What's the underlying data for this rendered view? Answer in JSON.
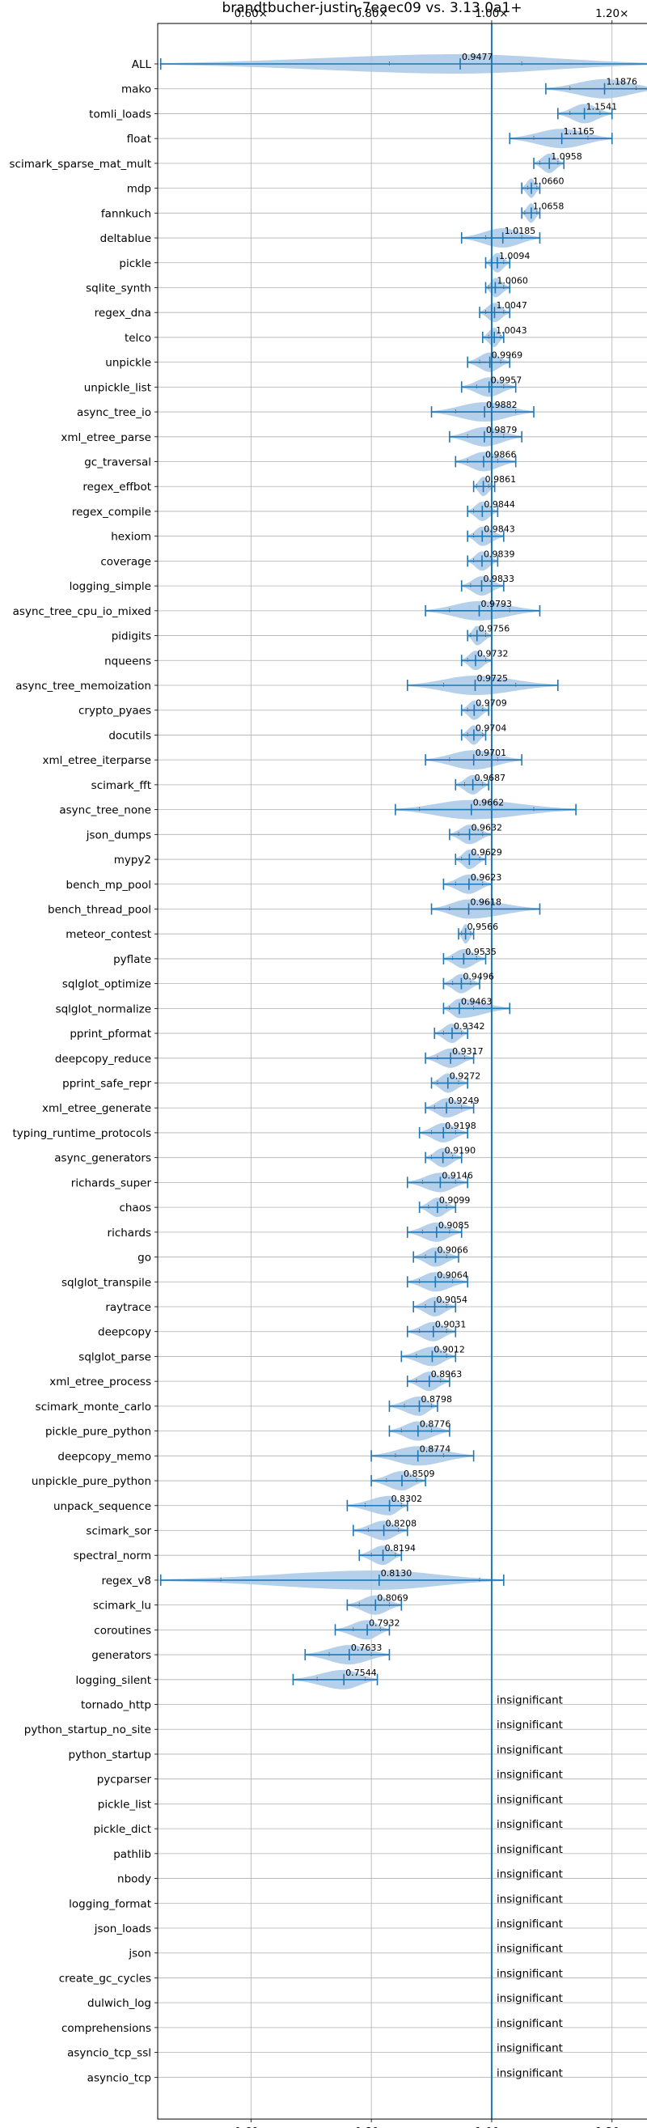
{
  "chart_data": {
    "type": "violin",
    "title": "brandtbucher-justin-7eaec09 vs. 3.13.0a1+",
    "xlim": [
      0.445,
      1.285
    ],
    "x_ticks": [
      0.6,
      0.8,
      1.0,
      1.2
    ],
    "x_tick_labels": [
      "0.60×",
      "0.80×",
      "1.00×",
      "1.20×"
    ],
    "reference_line": 1.0,
    "grid": true,
    "violin_color": "#a8c8e6",
    "line_color": "#1f77b4",
    "insignificant_text": "insignificant",
    "benchmarks": [
      {
        "name": "ALL",
        "mean": 0.9477,
        "min": 0.45,
        "max": 1.28,
        "p_lo": 0.83,
        "p_hi": 1.05
      },
      {
        "name": "mako",
        "mean": 1.1876,
        "min": 1.09,
        "max": 1.28,
        "p_lo": 1.13,
        "p_hi": 1.24
      },
      {
        "name": "tomli_loads",
        "mean": 1.1541,
        "min": 1.11,
        "max": 1.2,
        "p_lo": 1.13,
        "p_hi": 1.18
      },
      {
        "name": "float",
        "mean": 1.1165,
        "min": 1.03,
        "max": 1.2,
        "p_lo": 1.07,
        "p_hi": 1.16
      },
      {
        "name": "scimark_sparse_mat_mult",
        "mean": 1.0958,
        "min": 1.07,
        "max": 1.12,
        "p_lo": 1.08,
        "p_hi": 1.11
      },
      {
        "name": "mdp",
        "mean": 1.066,
        "min": 1.05,
        "max": 1.08,
        "p_lo": 1.06,
        "p_hi": 1.075
      },
      {
        "name": "fannkuch",
        "mean": 1.0658,
        "min": 1.05,
        "max": 1.08,
        "p_lo": 1.055,
        "p_hi": 1.075
      },
      {
        "name": "deltablue",
        "mean": 1.0185,
        "min": 0.95,
        "max": 1.08,
        "p_lo": 0.99,
        "p_hi": 1.05
      },
      {
        "name": "pickle",
        "mean": 1.0094,
        "min": 0.99,
        "max": 1.03,
        "p_lo": 1.0,
        "p_hi": 1.02
      },
      {
        "name": "sqlite_synth",
        "mean": 1.006,
        "min": 0.99,
        "max": 1.03,
        "p_lo": 0.995,
        "p_hi": 1.02
      },
      {
        "name": "regex_dna",
        "mean": 1.0047,
        "min": 0.98,
        "max": 1.03,
        "p_lo": 0.99,
        "p_hi": 1.02
      },
      {
        "name": "telco",
        "mean": 1.0043,
        "min": 0.985,
        "max": 1.02,
        "p_lo": 0.995,
        "p_hi": 1.015
      },
      {
        "name": "unpickle",
        "mean": 0.9969,
        "min": 0.96,
        "max": 1.03,
        "p_lo": 0.98,
        "p_hi": 1.015
      },
      {
        "name": "unpickle_list",
        "mean": 0.9957,
        "min": 0.95,
        "max": 1.04,
        "p_lo": 0.975,
        "p_hi": 1.02
      },
      {
        "name": "async_tree_io",
        "mean": 0.9882,
        "min": 0.9,
        "max": 1.07,
        "p_lo": 0.94,
        "p_hi": 1.04
      },
      {
        "name": "xml_etree_parse",
        "mean": 0.9879,
        "min": 0.93,
        "max": 1.05,
        "p_lo": 0.96,
        "p_hi": 1.02
      },
      {
        "name": "gc_traversal",
        "mean": 0.9866,
        "min": 0.94,
        "max": 1.04,
        "p_lo": 0.96,
        "p_hi": 1.01
      },
      {
        "name": "regex_effbot",
        "mean": 0.9861,
        "min": 0.97,
        "max": 1.005,
        "p_lo": 0.975,
        "p_hi": 0.995
      },
      {
        "name": "regex_compile",
        "mean": 0.9844,
        "min": 0.96,
        "max": 1.01,
        "p_lo": 0.97,
        "p_hi": 1.0
      },
      {
        "name": "hexiom",
        "mean": 0.9843,
        "min": 0.96,
        "max": 1.02,
        "p_lo": 0.97,
        "p_hi": 1.0
      },
      {
        "name": "coverage",
        "mean": 0.9839,
        "min": 0.96,
        "max": 1.01,
        "p_lo": 0.97,
        "p_hi": 1.0
      },
      {
        "name": "logging_simple",
        "mean": 0.9833,
        "min": 0.95,
        "max": 1.02,
        "p_lo": 0.965,
        "p_hi": 1.0
      },
      {
        "name": "async_tree_cpu_io_mixed",
        "mean": 0.9793,
        "min": 0.89,
        "max": 1.08,
        "p_lo": 0.93,
        "p_hi": 1.03
      },
      {
        "name": "pidigits",
        "mean": 0.9756,
        "min": 0.96,
        "max": 1.0,
        "p_lo": 0.965,
        "p_hi": 0.99
      },
      {
        "name": "nqueens",
        "mean": 0.9732,
        "min": 0.95,
        "max": 1.0,
        "p_lo": 0.96,
        "p_hi": 0.99
      },
      {
        "name": "async_tree_memoization",
        "mean": 0.9725,
        "min": 0.86,
        "max": 1.11,
        "p_lo": 0.92,
        "p_hi": 1.04
      },
      {
        "name": "crypto_pyaes",
        "mean": 0.9709,
        "min": 0.95,
        "max": 0.995,
        "p_lo": 0.96,
        "p_hi": 0.985
      },
      {
        "name": "docutils",
        "mean": 0.9704,
        "min": 0.95,
        "max": 0.99,
        "p_lo": 0.96,
        "p_hi": 0.985
      },
      {
        "name": "xml_etree_iterparse",
        "mean": 0.9701,
        "min": 0.89,
        "max": 1.05,
        "p_lo": 0.93,
        "p_hi": 1.01
      },
      {
        "name": "scimark_fft",
        "mean": 0.9687,
        "min": 0.94,
        "max": 0.995,
        "p_lo": 0.955,
        "p_hi": 0.985
      },
      {
        "name": "async_tree_none",
        "mean": 0.9662,
        "min": 0.84,
        "max": 1.14,
        "p_lo": 0.88,
        "p_hi": 1.07
      },
      {
        "name": "json_dumps",
        "mean": 0.9632,
        "min": 0.93,
        "max": 1.0,
        "p_lo": 0.945,
        "p_hi": 0.985
      },
      {
        "name": "mypy2",
        "mean": 0.9629,
        "min": 0.94,
        "max": 0.99,
        "p_lo": 0.95,
        "p_hi": 0.98
      },
      {
        "name": "bench_mp_pool",
        "mean": 0.9623,
        "min": 0.92,
        "max": 1.0,
        "p_lo": 0.94,
        "p_hi": 0.985
      },
      {
        "name": "bench_thread_pool",
        "mean": 0.9618,
        "min": 0.9,
        "max": 1.08,
        "p_lo": 0.93,
        "p_hi": 1.0
      },
      {
        "name": "meteor_contest",
        "mean": 0.9566,
        "min": 0.945,
        "max": 0.97,
        "p_lo": 0.95,
        "p_hi": 0.965
      },
      {
        "name": "pyflate",
        "mean": 0.9535,
        "min": 0.92,
        "max": 0.99,
        "p_lo": 0.935,
        "p_hi": 0.975
      },
      {
        "name": "sqlglot_optimize",
        "mean": 0.9496,
        "min": 0.92,
        "max": 0.98,
        "p_lo": 0.935,
        "p_hi": 0.965
      },
      {
        "name": "sqlglot_normalize",
        "mean": 0.9463,
        "min": 0.92,
        "max": 1.03,
        "p_lo": 0.93,
        "p_hi": 0.97
      },
      {
        "name": "pprint_pformat",
        "mean": 0.9342,
        "min": 0.905,
        "max": 0.96,
        "p_lo": 0.92,
        "p_hi": 0.95
      },
      {
        "name": "deepcopy_reduce",
        "mean": 0.9317,
        "min": 0.89,
        "max": 0.97,
        "p_lo": 0.91,
        "p_hi": 0.955
      },
      {
        "name": "pprint_safe_repr",
        "mean": 0.9272,
        "min": 0.9,
        "max": 0.96,
        "p_lo": 0.91,
        "p_hi": 0.945
      },
      {
        "name": "xml_etree_generate",
        "mean": 0.9249,
        "min": 0.89,
        "max": 0.97,
        "p_lo": 0.905,
        "p_hi": 0.95
      },
      {
        "name": "typing_runtime_protocols",
        "mean": 0.9198,
        "min": 0.88,
        "max": 0.96,
        "p_lo": 0.9,
        "p_hi": 0.94
      },
      {
        "name": "async_generators",
        "mean": 0.919,
        "min": 0.89,
        "max": 0.95,
        "p_lo": 0.9,
        "p_hi": 0.935
      },
      {
        "name": "richards_super",
        "mean": 0.9146,
        "min": 0.86,
        "max": 0.96,
        "p_lo": 0.885,
        "p_hi": 0.94
      },
      {
        "name": "chaos",
        "mean": 0.9099,
        "min": 0.88,
        "max": 0.94,
        "p_lo": 0.895,
        "p_hi": 0.925
      },
      {
        "name": "richards",
        "mean": 0.9085,
        "min": 0.86,
        "max": 0.95,
        "p_lo": 0.885,
        "p_hi": 0.93
      },
      {
        "name": "go",
        "mean": 0.9066,
        "min": 0.87,
        "max": 0.945,
        "p_lo": 0.89,
        "p_hi": 0.925
      },
      {
        "name": "sqlglot_transpile",
        "mean": 0.9064,
        "min": 0.86,
        "max": 0.96,
        "p_lo": 0.88,
        "p_hi": 0.935
      },
      {
        "name": "raytrace",
        "mean": 0.9054,
        "min": 0.87,
        "max": 0.94,
        "p_lo": 0.89,
        "p_hi": 0.925
      },
      {
        "name": "deepcopy",
        "mean": 0.9031,
        "min": 0.86,
        "max": 0.94,
        "p_lo": 0.88,
        "p_hi": 0.925
      },
      {
        "name": "sqlglot_parse",
        "mean": 0.9012,
        "min": 0.85,
        "max": 0.94,
        "p_lo": 0.875,
        "p_hi": 0.925
      },
      {
        "name": "xml_etree_process",
        "mean": 0.8963,
        "min": 0.86,
        "max": 0.93,
        "p_lo": 0.875,
        "p_hi": 0.915
      },
      {
        "name": "scimark_monte_carlo",
        "mean": 0.8798,
        "min": 0.83,
        "max": 0.91,
        "p_lo": 0.855,
        "p_hi": 0.9
      },
      {
        "name": "pickle_pure_python",
        "mean": 0.8776,
        "min": 0.83,
        "max": 0.93,
        "p_lo": 0.85,
        "p_hi": 0.9
      },
      {
        "name": "deepcopy_memo",
        "mean": 0.8774,
        "min": 0.8,
        "max": 0.97,
        "p_lo": 0.84,
        "p_hi": 0.92
      },
      {
        "name": "unpickle_pure_python",
        "mean": 0.8509,
        "min": 0.8,
        "max": 0.89,
        "p_lo": 0.825,
        "p_hi": 0.875
      },
      {
        "name": "unpack_sequence",
        "mean": 0.8302,
        "min": 0.76,
        "max": 0.86,
        "p_lo": 0.79,
        "p_hi": 0.85
      },
      {
        "name": "scimark_sor",
        "mean": 0.8208,
        "min": 0.77,
        "max": 0.86,
        "p_lo": 0.795,
        "p_hi": 0.845
      },
      {
        "name": "spectral_norm",
        "mean": 0.8194,
        "min": 0.78,
        "max": 0.85,
        "p_lo": 0.8,
        "p_hi": 0.84
      },
      {
        "name": "regex_v8",
        "mean": 0.813,
        "min": 0.45,
        "max": 1.02,
        "p_lo": 0.55,
        "p_hi": 0.98
      },
      {
        "name": "scimark_lu",
        "mean": 0.8069,
        "min": 0.76,
        "max": 0.85,
        "p_lo": 0.78,
        "p_hi": 0.83
      },
      {
        "name": "coroutines",
        "mean": 0.7932,
        "min": 0.74,
        "max": 0.83,
        "p_lo": 0.77,
        "p_hi": 0.815
      },
      {
        "name": "generators",
        "mean": 0.7633,
        "min": 0.69,
        "max": 0.83,
        "p_lo": 0.73,
        "p_hi": 0.8
      },
      {
        "name": "logging_silent",
        "mean": 0.7544,
        "min": 0.67,
        "max": 0.81,
        "p_lo": 0.71,
        "p_hi": 0.79
      },
      {
        "name": "tornado_http",
        "insignificant": true
      },
      {
        "name": "python_startup_no_site",
        "insignificant": true
      },
      {
        "name": "python_startup",
        "insignificant": true
      },
      {
        "name": "pycparser",
        "insignificant": true
      },
      {
        "name": "pickle_list",
        "insignificant": true
      },
      {
        "name": "pickle_dict",
        "insignificant": true
      },
      {
        "name": "pathlib",
        "insignificant": true
      },
      {
        "name": "nbody",
        "insignificant": true
      },
      {
        "name": "logging_format",
        "insignificant": true
      },
      {
        "name": "json_loads",
        "insignificant": true
      },
      {
        "name": "json",
        "insignificant": true
      },
      {
        "name": "create_gc_cycles",
        "insignificant": true
      },
      {
        "name": "dulwich_log",
        "insignificant": true
      },
      {
        "name": "comprehensions",
        "insignificant": true
      },
      {
        "name": "asyncio_tcp_ssl",
        "insignificant": true
      },
      {
        "name": "asyncio_tcp",
        "insignificant": true
      }
    ]
  }
}
